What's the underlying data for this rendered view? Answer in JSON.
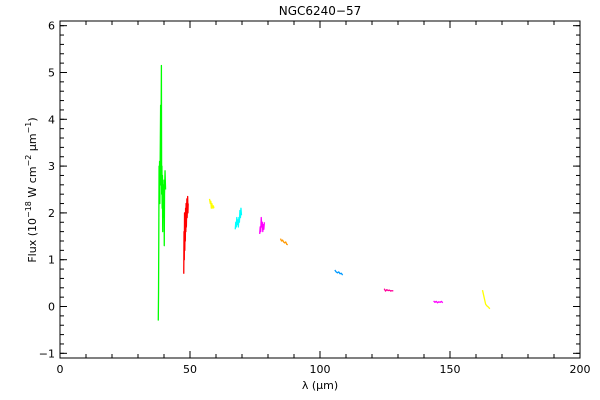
{
  "chart_data": {
    "type": "line",
    "title": "NGC6240−57",
    "xlabel_main": "λ (",
    "xlabel_unit": "μm",
    "xlabel_close": ")",
    "ylabel": {
      "prefix": "Flux (10",
      "exp1": "−18",
      "mid": " W cm",
      "exp2": "−2",
      "mu": " μm",
      "exp3": "−1",
      "suffix": ")"
    },
    "xlim": [
      0,
      200
    ],
    "ylim": [
      -1.1,
      6.1
    ],
    "xticks": [
      0,
      50,
      100,
      150,
      200
    ],
    "yticks": [
      -1,
      0,
      1,
      2,
      3,
      4,
      5,
      6
    ],
    "x_minor_step": 10,
    "y_minor_step": 0.2,
    "grid": false,
    "legend": "none",
    "series": [
      {
        "color": "#00ff00",
        "points": [
          [
            37.8,
            -0.3
          ],
          [
            37.9,
            0.3
          ],
          [
            38.0,
            1.5
          ],
          [
            38.1,
            3.0
          ],
          [
            38.2,
            2.5
          ],
          [
            38.3,
            3.1
          ],
          [
            38.4,
            2.2
          ],
          [
            38.5,
            2.9
          ],
          [
            38.6,
            3.6
          ],
          [
            38.7,
            4.3
          ],
          [
            38.8,
            2.6
          ],
          [
            38.9,
            4.1
          ],
          [
            39.0,
            5.15
          ],
          [
            39.1,
            2.4
          ],
          [
            39.2,
            3.0
          ],
          [
            39.3,
            2.1
          ],
          [
            39.4,
            2.8
          ],
          [
            39.5,
            1.6
          ],
          [
            39.6,
            2.5
          ],
          [
            39.7,
            1.9
          ],
          [
            39.8,
            2.6
          ],
          [
            39.9,
            2.2
          ],
          [
            40.0,
            2.7
          ],
          [
            40.1,
            1.3
          ],
          [
            40.2,
            2.4
          ],
          [
            40.4,
            2.9
          ],
          [
            40.6,
            2.5
          ]
        ]
      },
      {
        "color": "#ff0000",
        "points": [
          [
            47.6,
            0.7
          ],
          [
            47.7,
            1.6
          ],
          [
            47.8,
            1.0
          ],
          [
            47.9,
            2.0
          ],
          [
            48.0,
            1.2
          ],
          [
            48.1,
            1.8
          ],
          [
            48.2,
            1.4
          ],
          [
            48.3,
            2.1
          ],
          [
            48.4,
            1.6
          ],
          [
            48.5,
            2.2
          ],
          [
            48.6,
            1.7
          ],
          [
            48.7,
            2.0
          ],
          [
            48.8,
            2.3
          ],
          [
            48.9,
            1.9
          ],
          [
            49.0,
            2.1
          ],
          [
            49.1,
            2.35
          ],
          [
            49.2,
            2.0
          ],
          [
            49.3,
            2.2
          ]
        ]
      },
      {
        "color": "#ffff00",
        "points": [
          [
            57.5,
            2.3
          ],
          [
            57.8,
            2.2
          ],
          [
            58.0,
            2.25
          ],
          [
            58.2,
            2.1
          ],
          [
            58.4,
            2.2
          ],
          [
            58.6,
            2.15
          ],
          [
            58.8,
            2.1
          ],
          [
            59.0,
            2.15
          ],
          [
            59.2,
            2.1
          ]
        ]
      },
      {
        "color": "#00ffff",
        "points": [
          [
            67.4,
            1.65
          ],
          [
            67.6,
            1.8
          ],
          [
            67.8,
            1.7
          ],
          [
            68.0,
            1.9
          ],
          [
            68.2,
            1.75
          ],
          [
            68.4,
            1.85
          ],
          [
            68.6,
            1.7
          ],
          [
            68.8,
            1.9
          ],
          [
            69.0,
            1.8
          ],
          [
            69.2,
            2.05
          ],
          [
            69.4,
            1.9
          ],
          [
            69.6,
            2.1
          ],
          [
            69.8,
            1.95
          ]
        ]
      },
      {
        "color": "#ff00ff",
        "points": [
          [
            76.8,
            1.55
          ],
          [
            77.0,
            1.7
          ],
          [
            77.2,
            1.6
          ],
          [
            77.4,
            1.9
          ],
          [
            77.6,
            1.7
          ],
          [
            77.8,
            1.8
          ],
          [
            78.0,
            1.6
          ],
          [
            78.2,
            1.75
          ],
          [
            78.4,
            1.65
          ],
          [
            78.6,
            1.8
          ]
        ]
      },
      {
        "color": "#ff9900",
        "points": [
          [
            84.8,
            1.45
          ],
          [
            85.2,
            1.4
          ],
          [
            85.6,
            1.42
          ],
          [
            86.0,
            1.38
          ],
          [
            86.4,
            1.36
          ],
          [
            86.8,
            1.38
          ],
          [
            87.2,
            1.33
          ],
          [
            87.6,
            1.32
          ]
        ]
      },
      {
        "color": "#0099ff",
        "points": [
          [
            105.7,
            0.78
          ],
          [
            106.2,
            0.74
          ],
          [
            106.7,
            0.72
          ],
          [
            107.2,
            0.74
          ],
          [
            107.7,
            0.7
          ],
          [
            108.2,
            0.71
          ],
          [
            108.7,
            0.67
          ]
        ]
      },
      {
        "color": "#ff0099",
        "points": [
          [
            124.7,
            0.38
          ],
          [
            125.2,
            0.33
          ],
          [
            125.7,
            0.36
          ],
          [
            126.2,
            0.34
          ],
          [
            126.7,
            0.35
          ],
          [
            127.2,
            0.33
          ],
          [
            127.7,
            0.34
          ],
          [
            128.2,
            0.33
          ]
        ]
      },
      {
        "color": "#ff00ff",
        "points": [
          [
            143.7,
            0.12
          ],
          [
            144.2,
            0.09
          ],
          [
            144.7,
            0.11
          ],
          [
            145.2,
            0.08
          ],
          [
            145.7,
            0.1
          ],
          [
            146.2,
            0.09
          ],
          [
            146.7,
            0.11
          ],
          [
            147.2,
            0.08
          ]
        ]
      },
      {
        "color": "#ffff00",
        "points": [
          [
            162.5,
            0.35
          ],
          [
            162.9,
            0.25
          ],
          [
            163.3,
            0.15
          ],
          [
            163.7,
            0.05
          ],
          [
            164.1,
            0.02
          ],
          [
            164.5,
            0.0
          ],
          [
            164.9,
            -0.02
          ],
          [
            165.3,
            -0.05
          ]
        ]
      }
    ]
  }
}
